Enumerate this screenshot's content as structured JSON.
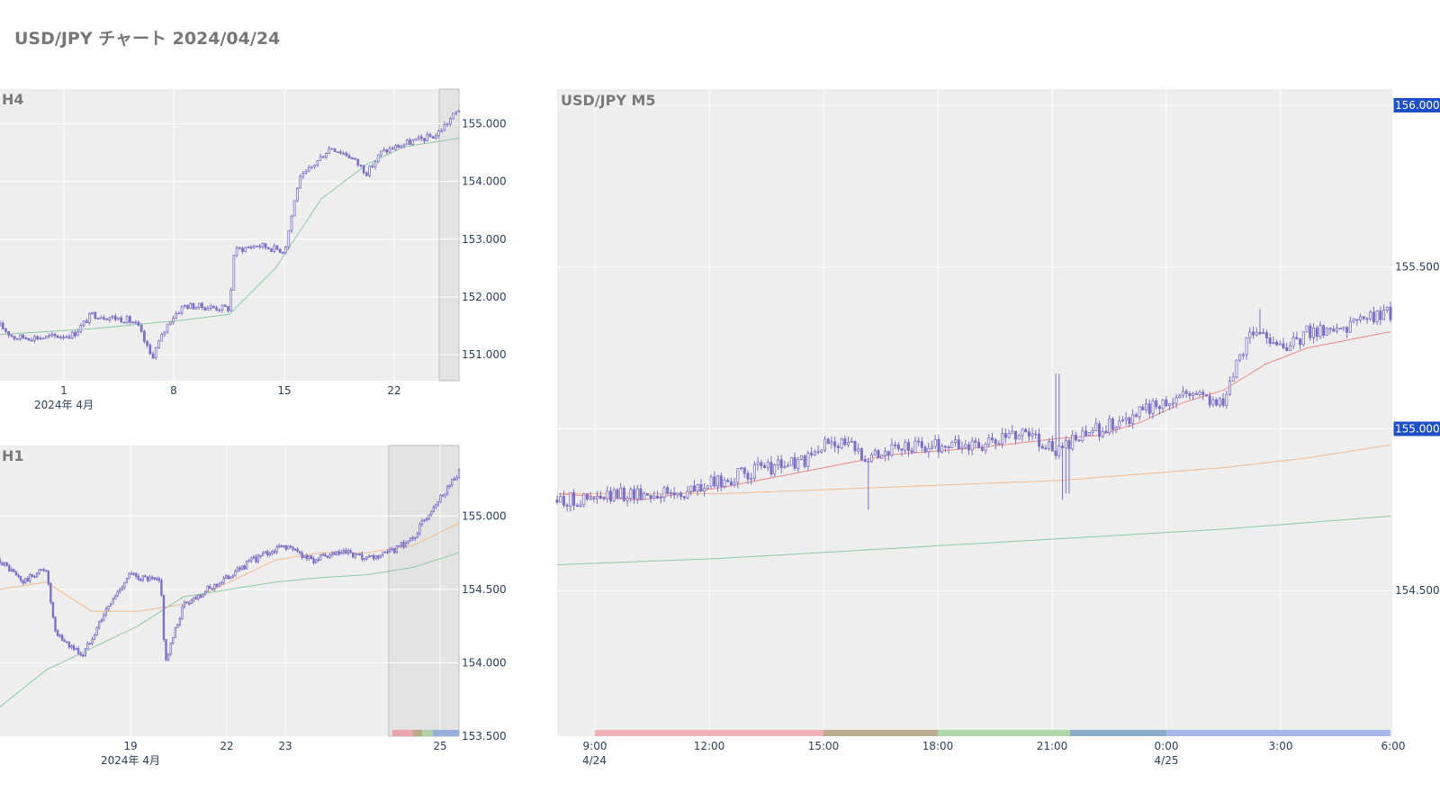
{
  "title": "USD/JPY チャート 2024/04/24",
  "colors": {
    "plot_bg": "#eeeeee",
    "grid": "#ffffff",
    "candle": "#7c6fc4",
    "ma_short": "#e88a8a",
    "ma_mid": "#f2b98c",
    "ma_long": "#8ccaa6",
    "badge": "#1f4fc7"
  },
  "chart_data": [
    {
      "id": "h4",
      "type": "candlestick",
      "title": "H4",
      "x_tick_labels": [
        "1",
        "8",
        "15",
        "22"
      ],
      "x_sub_label": "2024年 4月",
      "ylim": [
        150.55,
        155.6
      ],
      "y_ticks": [
        151,
        152,
        153,
        154,
        155
      ],
      "y_tick_labels": [
        "151.000",
        "152.000",
        "153.000",
        "154.000",
        "155.000"
      ],
      "close_anchors": [
        [
          0,
          151.5
        ],
        [
          0.03,
          151.3
        ],
        [
          0.1,
          151.3
        ],
        [
          0.16,
          151.35
        ],
        [
          0.2,
          151.7
        ],
        [
          0.28,
          151.6
        ],
        [
          0.3,
          151.5
        ],
        [
          0.33,
          150.95
        ],
        [
          0.37,
          151.6
        ],
        [
          0.4,
          151.85
        ],
        [
          0.5,
          151.8
        ],
        [
          0.51,
          152.8
        ],
        [
          0.56,
          152.9
        ],
        [
          0.62,
          152.8
        ],
        [
          0.65,
          154.0
        ],
        [
          0.72,
          154.6
        ],
        [
          0.76,
          154.45
        ],
        [
          0.8,
          154.15
        ],
        [
          0.83,
          154.5
        ],
        [
          0.88,
          154.65
        ],
        [
          0.95,
          154.8
        ],
        [
          1,
          155.25
        ]
      ],
      "ma_series": [
        {
          "color_key": "ma_long",
          "anchors": [
            [
              0,
              151.35
            ],
            [
              0.2,
              151.45
            ],
            [
              0.4,
              151.6
            ],
            [
              0.5,
              151.7
            ],
            [
              0.6,
              152.5
            ],
            [
              0.7,
              153.7
            ],
            [
              0.8,
              154.3
            ],
            [
              0.88,
              154.6
            ],
            [
              1,
              154.75
            ]
          ]
        }
      ],
      "highlight_start": 0.955
    },
    {
      "id": "h1",
      "type": "candlestick",
      "title": "H1",
      "x_tick_labels": [
        "19",
        "22",
        "23",
        "25"
      ],
      "x_sub_label": "2024年 4月",
      "ylim": [
        153.5,
        155.48
      ],
      "y_ticks": [
        154,
        154.5,
        155
      ],
      "y_tick_labels": [
        "154.000",
        "154.500",
        "155.000"
      ],
      "y_edge_label": "153.500",
      "close_anchors": [
        [
          0,
          154.7
        ],
        [
          0.05,
          154.55
        ],
        [
          0.1,
          154.65
        ],
        [
          0.12,
          154.2
        ],
        [
          0.18,
          154.05
        ],
        [
          0.22,
          154.3
        ],
        [
          0.28,
          154.6
        ],
        [
          0.35,
          154.55
        ],
        [
          0.36,
          154.0
        ],
        [
          0.4,
          154.4
        ],
        [
          0.48,
          154.55
        ],
        [
          0.55,
          154.7
        ],
        [
          0.62,
          154.8
        ],
        [
          0.68,
          154.7
        ],
        [
          0.75,
          154.75
        ],
        [
          0.8,
          154.7
        ],
        [
          0.85,
          154.75
        ],
        [
          0.9,
          154.85
        ],
        [
          0.94,
          155.05
        ],
        [
          1,
          155.3
        ]
      ],
      "ma_series": [
        {
          "color_key": "ma_mid",
          "anchors": [
            [
              0,
              154.5
            ],
            [
              0.1,
              154.55
            ],
            [
              0.2,
              154.35
            ],
            [
              0.3,
              154.35
            ],
            [
              0.4,
              154.4
            ],
            [
              0.5,
              154.55
            ],
            [
              0.6,
              154.7
            ],
            [
              0.7,
              154.75
            ],
            [
              0.8,
              154.75
            ],
            [
              0.9,
              154.8
            ],
            [
              1,
              154.95
            ]
          ]
        },
        {
          "color_key": "ma_long",
          "anchors": [
            [
              0,
              153.7
            ],
            [
              0.1,
              153.95
            ],
            [
              0.2,
              154.1
            ],
            [
              0.3,
              154.25
            ],
            [
              0.4,
              154.45
            ],
            [
              0.5,
              154.5
            ],
            [
              0.6,
              154.55
            ],
            [
              0.7,
              154.58
            ],
            [
              0.8,
              154.6
            ],
            [
              0.9,
              154.65
            ],
            [
              1,
              154.75
            ]
          ]
        }
      ],
      "highlight_start": 0.845,
      "session_bar": true
    },
    {
      "id": "m5",
      "type": "candlestick",
      "title": "USD/JPY M5",
      "x_tick_labels": [
        "9:00",
        "12:00",
        "15:00",
        "18:00",
        "21:00",
        "0:00",
        "3:00",
        "6:00"
      ],
      "x_sub_labels": [
        {
          "at_tick": "9:00",
          "label": "4/24"
        },
        {
          "at_tick": "0:00",
          "label": "4/25"
        }
      ],
      "ylim": [
        154.05,
        156.05
      ],
      "y_ticks": [
        154.5,
        155.5
      ],
      "y_tick_labels": [
        "154.500",
        "155.500"
      ],
      "price_badges": [
        {
          "value": 156.0,
          "label": "156.000"
        },
        {
          "value": 155.0,
          "label": "155.000"
        }
      ],
      "close_anchors": [
        [
          0,
          154.78
        ],
        [
          0.05,
          154.78
        ],
        [
          0.08,
          154.8
        ],
        [
          0.15,
          154.8
        ],
        [
          0.2,
          154.84
        ],
        [
          0.25,
          154.88
        ],
        [
          0.3,
          154.9
        ],
        [
          0.33,
          154.97
        ],
        [
          0.37,
          154.92
        ],
        [
          0.42,
          154.94
        ],
        [
          0.47,
          154.95
        ],
        [
          0.52,
          154.95
        ],
        [
          0.56,
          155.0
        ],
        [
          0.6,
          154.93
        ],
        [
          0.65,
          155.0
        ],
        [
          0.7,
          155.05
        ],
        [
          0.76,
          155.12
        ],
        [
          0.8,
          155.08
        ],
        [
          0.83,
          155.3
        ],
        [
          0.86,
          155.28
        ],
        [
          0.88,
          155.25
        ],
        [
          0.9,
          155.3
        ],
        [
          0.95,
          155.32
        ],
        [
          1,
          155.36
        ]
      ],
      "spikes": [
        {
          "at": 0.375,
          "value": 154.75
        },
        {
          "at": 0.6,
          "value": 155.17
        },
        {
          "at": 0.605,
          "value": 154.78
        },
        {
          "at": 0.612,
          "value": 154.8
        },
        {
          "at": 0.842,
          "value": 155.37
        }
      ],
      "ma_series": [
        {
          "color_key": "ma_short",
          "anchors": [
            [
              0,
              154.8
            ],
            [
              0.1,
              154.78
            ],
            [
              0.2,
              154.82
            ],
            [
              0.3,
              154.87
            ],
            [
              0.4,
              154.92
            ],
            [
              0.5,
              154.94
            ],
            [
              0.6,
              154.97
            ],
            [
              0.65,
              154.98
            ],
            [
              0.7,
              155.02
            ],
            [
              0.75,
              155.08
            ],
            [
              0.8,
              155.12
            ],
            [
              0.85,
              155.2
            ],
            [
              0.9,
              155.25
            ],
            [
              1,
              155.3
            ]
          ]
        },
        {
          "color_key": "ma_mid",
          "anchors": [
            [
              0,
              154.8
            ],
            [
              0.2,
              154.8
            ],
            [
              0.4,
              154.82
            ],
            [
              0.6,
              154.84
            ],
            [
              0.8,
              154.88
            ],
            [
              0.9,
              154.91
            ],
            [
              1,
              154.95
            ]
          ]
        },
        {
          "color_key": "ma_long",
          "anchors": [
            [
              0,
              154.58
            ],
            [
              0.2,
              154.6
            ],
            [
              0.4,
              154.63
            ],
            [
              0.6,
              154.66
            ],
            [
              0.8,
              154.69
            ],
            [
              1,
              154.73
            ]
          ]
        }
      ],
      "session_bar": true
    }
  ]
}
